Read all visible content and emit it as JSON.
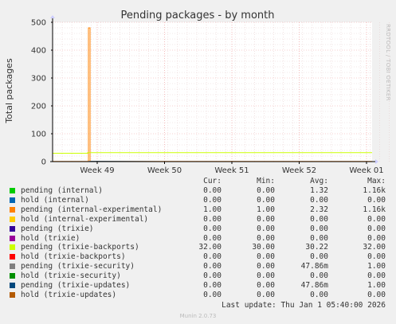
{
  "chart_data": {
    "type": "line",
    "title": "Pending packages - by month",
    "ylabel": "Total packages",
    "ylim": [
      0,
      500
    ],
    "yticks": [
      "0",
      "100",
      "200",
      "300",
      "400",
      "500"
    ],
    "xticks": [
      "Week 49",
      "Week 50",
      "Week 51",
      "Week 52",
      "Week 01"
    ],
    "side_label": "RRDTOOL / TOBI OETIKER",
    "grid": true,
    "series": [
      {
        "name": "pending (internal)",
        "color": "#00cc00",
        "values": [
          0,
          0,
          0,
          0,
          0,
          0
        ]
      },
      {
        "name": "hold (internal)",
        "color": "#0066b3",
        "values": [
          0,
          0,
          0,
          0,
          0,
          0
        ]
      },
      {
        "name": "pending (internal-experimental)",
        "color": "#ff8000",
        "values": [
          1,
          480,
          1,
          1,
          1,
          1
        ]
      },
      {
        "name": "hold (internal-experimental)",
        "color": "#ffcc00",
        "values": [
          0,
          0,
          0,
          0,
          0,
          0
        ]
      },
      {
        "name": "pending (trixie)",
        "color": "#330099",
        "values": [
          0,
          0,
          0,
          0,
          0,
          0
        ]
      },
      {
        "name": "hold (trixie)",
        "color": "#990099",
        "values": [
          0,
          0,
          0,
          0,
          0,
          0
        ]
      },
      {
        "name": "pending (trixie-backports)",
        "color": "#ccff00",
        "values": [
          30,
          32,
          32,
          32,
          32,
          32
        ]
      },
      {
        "name": "hold (trixie-backports)",
        "color": "#ff0000",
        "values": [
          0,
          0,
          0,
          0,
          0,
          0
        ]
      },
      {
        "name": "pending (trixie-security)",
        "color": "#808080",
        "values": [
          0,
          0,
          1,
          0,
          0,
          0
        ]
      },
      {
        "name": "hold (trixie-security)",
        "color": "#008f00",
        "values": [
          0,
          0,
          0,
          0,
          0,
          0
        ]
      },
      {
        "name": "pending (trixie-updates)",
        "color": "#00487d",
        "values": [
          0,
          0,
          1,
          0,
          0,
          0
        ]
      },
      {
        "name": "hold (trixie-updates)",
        "color": "#b35a00",
        "values": [
          0,
          0,
          0,
          0,
          0,
          0
        ]
      }
    ]
  },
  "legend": {
    "headers": [
      "Cur:",
      "Min:",
      "Avg:",
      "Max:"
    ],
    "rows": [
      {
        "name": "pending (internal)",
        "color": "#00cc00",
        "cur": "0.00",
        "min": "0.00",
        "avg": "1.32",
        "max": "1.16k"
      },
      {
        "name": "hold (internal)",
        "color": "#0066b3",
        "cur": "0.00",
        "min": "0.00",
        "avg": "0.00",
        "max": "0.00"
      },
      {
        "name": "pending (internal-experimental)",
        "color": "#ff8000",
        "cur": "1.00",
        "min": "1.00",
        "avg": "2.32",
        "max": "1.16k"
      },
      {
        "name": "hold (internal-experimental)",
        "color": "#ffcc00",
        "cur": "0.00",
        "min": "0.00",
        "avg": "0.00",
        "max": "0.00"
      },
      {
        "name": "pending (trixie)",
        "color": "#330099",
        "cur": "0.00",
        "min": "0.00",
        "avg": "0.00",
        "max": "0.00"
      },
      {
        "name": "hold (trixie)",
        "color": "#990099",
        "cur": "0.00",
        "min": "0.00",
        "avg": "0.00",
        "max": "0.00"
      },
      {
        "name": "pending (trixie-backports)",
        "color": "#ccff00",
        "cur": "32.00",
        "min": "30.00",
        "avg": "30.22",
        "max": "32.00"
      },
      {
        "name": "hold (trixie-backports)",
        "color": "#ff0000",
        "cur": "0.00",
        "min": "0.00",
        "avg": "0.00",
        "max": "0.00"
      },
      {
        "name": "pending (trixie-security)",
        "color": "#808080",
        "cur": "0.00",
        "min": "0.00",
        "avg": "47.86m",
        "max": "1.00"
      },
      {
        "name": "hold (trixie-security)",
        "color": "#008f00",
        "cur": "0.00",
        "min": "0.00",
        "avg": "0.00",
        "max": "0.00"
      },
      {
        "name": "pending (trixie-updates)",
        "color": "#00487d",
        "cur": "0.00",
        "min": "0.00",
        "avg": "47.86m",
        "max": "1.00"
      },
      {
        "name": "hold (trixie-updates)",
        "color": "#b35a00",
        "cur": "0.00",
        "min": "0.00",
        "avg": "0.00",
        "max": "0.00"
      }
    ]
  },
  "footer": {
    "last_update": "Last update: Thu Jan  1 05:40:00 2026",
    "munin": "Munin 2.0.73"
  }
}
